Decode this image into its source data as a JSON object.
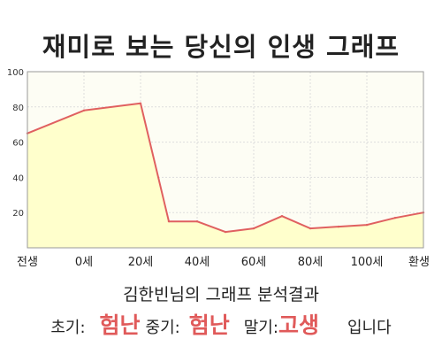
{
  "title": "재미로 보는 당신의 인생 그래프",
  "chart_data": {
    "type": "area",
    "title": "재미로 보는 당신의 인생 그래프",
    "x": [
      0,
      1,
      2,
      2.5,
      3,
      3.5,
      4,
      4.5,
      5,
      5.5,
      6,
      6.5,
      7
    ],
    "values": [
      65,
      78,
      82,
      15,
      15,
      9,
      11,
      18,
      11,
      12,
      13,
      17,
      20
    ],
    "x_ticks": [
      {
        "x": 0,
        "label": "전생"
      },
      {
        "x": 1,
        "label": "0세"
      },
      {
        "x": 2,
        "label": "20세"
      },
      {
        "x": 3,
        "label": "40세"
      },
      {
        "x": 4,
        "label": "60세"
      },
      {
        "x": 5,
        "label": "80세"
      },
      {
        "x": 6,
        "label": "100세"
      },
      {
        "x": 7,
        "label": "환생"
      }
    ],
    "y_ticks": [
      20,
      40,
      60,
      80,
      100
    ],
    "xlim": [
      0,
      7
    ],
    "ylim": [
      0,
      100
    ],
    "grid": true,
    "line_color": "#e06060",
    "fill_color": "#ffffcc"
  },
  "result": {
    "heading": "김한빈님의 그래프 분석결과",
    "early_label": "초기:",
    "early_value": "험난",
    "middle_label": "중기:",
    "middle_value": "험난",
    "late_label": "말기:",
    "late_value": "고생",
    "ending": "입니다"
  }
}
